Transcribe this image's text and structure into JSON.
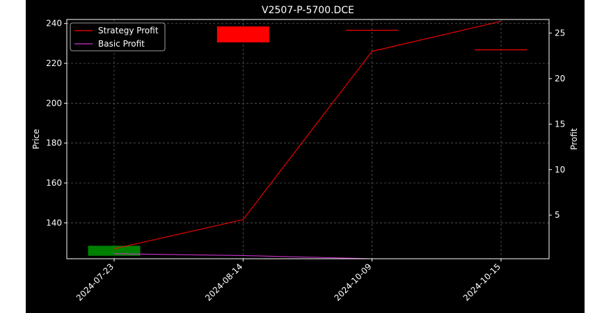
{
  "chart_data": {
    "type": "candlestick+line",
    "title": "V2507-P-5700.DCE",
    "ylabel_left": "Price",
    "ylabel_right": "Profit",
    "categories": [
      "2024-07-23",
      "2024-08-14",
      "2024-10-09",
      "2024-10-15"
    ],
    "ylim_left": [
      122,
      242
    ],
    "ylim_right": [
      0.2,
      26.5
    ],
    "yticks_left": [
      140,
      160,
      180,
      200,
      220,
      240
    ],
    "yticks_right": [
      5,
      10,
      15,
      20,
      25
    ],
    "grid": true,
    "legend_position": "top-left",
    "candles": [
      {
        "date": "2024-07-23",
        "open": 123.5,
        "close": 128.5,
        "color": "#008000"
      },
      {
        "date": "2024-08-14",
        "open": 238.5,
        "close": 230.5,
        "color": "#ff0000"
      },
      {
        "date": "2024-10-09",
        "open": 236.8,
        "close": 236.8,
        "color": "#ff0000"
      },
      {
        "date": "2024-10-15",
        "open": 227.0,
        "close": 227.0,
        "color": "#ff0000"
      }
    ],
    "series": [
      {
        "name": "Strategy Profit",
        "color": "#ff0000",
        "axis": "right",
        "values": [
          1.3,
          4.5,
          23.0,
          26.3
        ]
      },
      {
        "name": "Basic Profit",
        "color": "#cc33cc",
        "axis": "right",
        "values": [
          0.75,
          0.55,
          0.2,
          0.2
        ]
      }
    ]
  }
}
